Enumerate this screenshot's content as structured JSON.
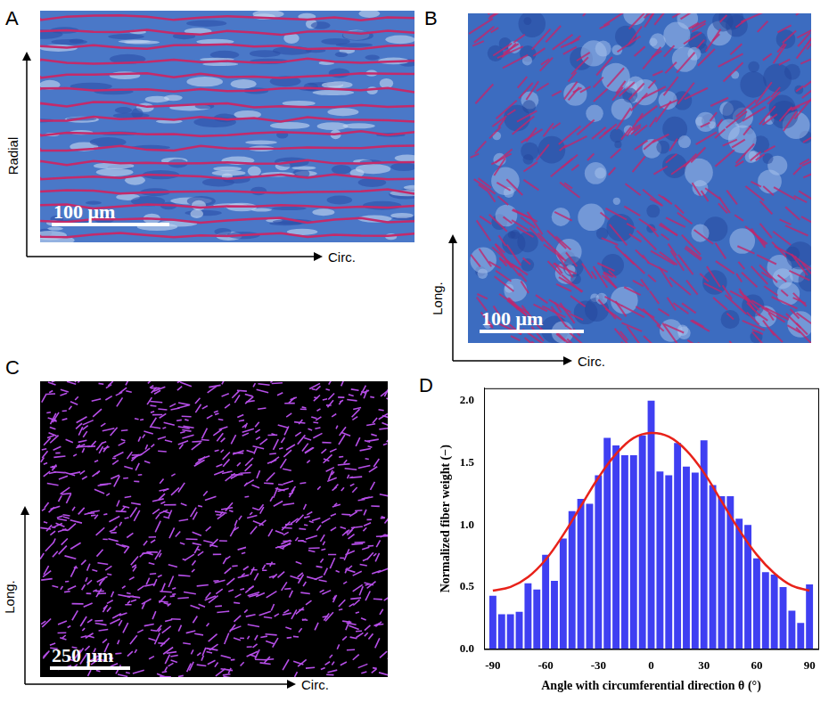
{
  "panels": [
    {
      "letter": "A",
      "x_axis": "Circ.",
      "y_axis": "Radial",
      "scale_bar": "100 μm"
    },
    {
      "letter": "B",
      "x_axis": "Circ.",
      "y_axis": "Long.",
      "scale_bar": "100 μm"
    },
    {
      "letter": "C",
      "x_axis": "Circ.",
      "y_axis": "Long.",
      "scale_bar": "250 μm"
    }
  ],
  "chart_data": {
    "type": "bar",
    "panel": "D",
    "x_label": "Angle with circumferential direction θ (°)",
    "y_label": "Normalized fiber weight (−)",
    "series": [
      {
        "type": "bar",
        "color": "#3f3ff2",
        "x": [
          -90,
          -85,
          -80,
          -75,
          -70,
          -65,
          -60,
          -55,
          -50,
          -45,
          -40,
          -35,
          -30,
          -25,
          -20,
          -15,
          -10,
          -5,
          0,
          5,
          10,
          15,
          20,
          25,
          30,
          35,
          40,
          45,
          50,
          55,
          60,
          65,
          70,
          75,
          80,
          85,
          90
        ],
        "values": [
          0.43,
          0.28,
          0.28,
          0.3,
          0.53,
          0.48,
          0.76,
          0.55,
          0.89,
          1.11,
          1.21,
          1.17,
          1.4,
          1.7,
          1.64,
          1.56,
          1.56,
          1.72,
          2.0,
          1.43,
          1.4,
          1.66,
          1.47,
          1.42,
          1.68,
          1.32,
          1.23,
          1.23,
          1.05,
          1.0,
          0.73,
          0.62,
          0.6,
          0.5,
          0.31,
          0.21,
          0.52
        ]
      },
      {
        "type": "line",
        "color": "#e8221a",
        "x": [
          -90,
          -80,
          -70,
          -60,
          -50,
          -40,
          -30,
          -20,
          -10,
          0,
          10,
          20,
          30,
          40,
          50,
          60,
          70,
          80,
          90
        ],
        "values": [
          0.47,
          0.5,
          0.58,
          0.72,
          0.92,
          1.15,
          1.38,
          1.57,
          1.7,
          1.74,
          1.71,
          1.6,
          1.42,
          1.19,
          0.96,
          0.76,
          0.61,
          0.51,
          0.47
        ]
      }
    ],
    "xlim": [
      -95,
      95
    ],
    "xticks": [
      -90,
      -60,
      -30,
      0,
      30,
      60,
      90
    ],
    "ylim": [
      0,
      2.1
    ],
    "yticks": [
      {
        "value": 0,
        "label": "0.0"
      },
      {
        "value": 0.5,
        "label": "0.5"
      },
      {
        "value": 1,
        "label": "1.0"
      },
      {
        "value": 1.5,
        "label": "1.5"
      },
      {
        "value": 2,
        "label": "2.0"
      }
    ],
    "grid": false
  }
}
